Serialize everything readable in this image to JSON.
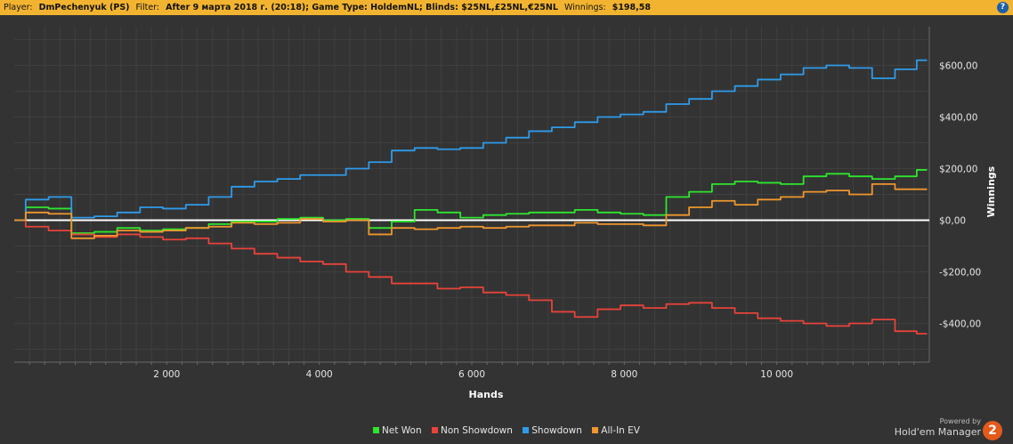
{
  "header": {
    "player_label": "Player:",
    "player_value": "DmPechenyuk (PS)",
    "filter_label": "Filter:",
    "filter_value": "After 9 марта 2018 г. (20:18); Game Type: HoldemNL; Blinds: $25NL,£25NL,€25NL",
    "winnings_label": "Winnings:",
    "winnings_value": "$198,58",
    "help_glyph": "?"
  },
  "branding": {
    "powered_by": "Powered by",
    "product": "Hold'em Manager",
    "badge": "2"
  },
  "colors": {
    "net_won": "#2ee62e",
    "non_showdown": "#e8433a",
    "showdown": "#2f9bea",
    "all_in_ev": "#f0962e",
    "zero_line": "#ffffff",
    "background": "#333333",
    "header_bg": "#f2b430"
  },
  "chart_data": {
    "type": "line",
    "title": "",
    "xlabel": "Hands",
    "ylabel": "Winnings",
    "xlim": [
      0,
      12000
    ],
    "ylim": [
      -550,
      750
    ],
    "x_ticks": [
      2000,
      4000,
      6000,
      8000,
      10000
    ],
    "x_tick_labels": [
      "2 000",
      "4 000",
      "6 000",
      "8 000",
      "10 000"
    ],
    "y_ticks": [
      600,
      400,
      200,
      0,
      -200,
      -400
    ],
    "y_tick_labels": [
      "$600,00",
      "$400,00",
      "$200,00",
      "$0,00",
      "-$200,00",
      "-$400,00"
    ],
    "grid": true,
    "legend_position": "bottom",
    "x": [
      0,
      300,
      600,
      900,
      1200,
      1500,
      1800,
      2100,
      2400,
      2700,
      3000,
      3300,
      3600,
      3900,
      4200,
      4500,
      4800,
      5100,
      5400,
      5700,
      6000,
      6300,
      6600,
      6900,
      7200,
      7500,
      7800,
      8100,
      8400,
      8700,
      9000,
      9300,
      9600,
      9900,
      10200,
      10500,
      10800,
      11100,
      11400,
      11700,
      11970
    ],
    "series": [
      {
        "name": "Net Won",
        "values": [
          0,
          50,
          45,
          -50,
          -45,
          -30,
          -40,
          -35,
          -30,
          -15,
          -5,
          -5,
          5,
          10,
          0,
          5,
          -30,
          -5,
          40,
          30,
          10,
          20,
          25,
          30,
          30,
          40,
          30,
          25,
          20,
          90,
          110,
          140,
          150,
          145,
          140,
          170,
          180,
          170,
          160,
          170,
          195
        ]
      },
      {
        "name": "Non Showdown",
        "values": [
          0,
          -25,
          -40,
          -55,
          -65,
          -55,
          -65,
          -75,
          -70,
          -90,
          -110,
          -130,
          -145,
          -160,
          -170,
          -200,
          -220,
          -245,
          -245,
          -265,
          -260,
          -280,
          -290,
          -310,
          -355,
          -375,
          -345,
          -330,
          -340,
          -325,
          -320,
          -340,
          -360,
          -380,
          -390,
          -400,
          -410,
          -400,
          -385,
          -430,
          -440
        ]
      },
      {
        "name": "Showdown",
        "values": [
          0,
          80,
          90,
          10,
          15,
          30,
          50,
          45,
          60,
          90,
          130,
          150,
          160,
          175,
          175,
          200,
          225,
          270,
          280,
          275,
          280,
          300,
          320,
          345,
          360,
          380,
          400,
          410,
          420,
          450,
          470,
          500,
          520,
          545,
          565,
          590,
          600,
          590,
          550,
          585,
          620
        ]
      },
      {
        "name": "All-In EV",
        "values": [
          0,
          30,
          25,
          -70,
          -60,
          -40,
          -45,
          -40,
          -30,
          -25,
          -10,
          -15,
          -10,
          5,
          -5,
          0,
          -55,
          -30,
          -35,
          -30,
          -25,
          -30,
          -25,
          -20,
          -20,
          -10,
          -15,
          -15,
          -20,
          20,
          50,
          75,
          60,
          80,
          90,
          110,
          115,
          100,
          140,
          120,
          120
        ]
      }
    ]
  }
}
